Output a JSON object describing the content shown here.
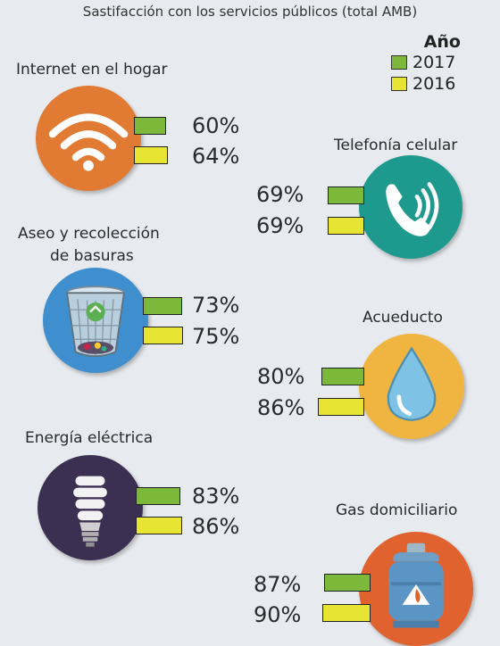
{
  "title": "Sastifacción con los servicios públicos (total AMB)",
  "legend": {
    "heading": "Año",
    "items": [
      {
        "label": "2017",
        "color": "#7cb83a"
      },
      {
        "label": "2016",
        "color": "#e8e433"
      }
    ]
  },
  "chart_data": {
    "type": "bar",
    "title": "Sastifacción con los servicios públicos (total AMB)",
    "categories": [
      "Internet en el hogar",
      "Telefonía celular",
      "Aseo y recolección de basuras",
      "Acueducto",
      "Energía eléctrica",
      "Gas domiciliario"
    ],
    "series": [
      {
        "name": "2017",
        "values": [
          60,
          69,
          73,
          80,
          83,
          87
        ]
      },
      {
        "name": "2016",
        "values": [
          64,
          69,
          75,
          86,
          86,
          90
        ]
      }
    ],
    "value_labels": {
      "2017": [
        "60%",
        "69%",
        "73%",
        "80%",
        "83%",
        "87%"
      ],
      "2016": [
        "64%",
        "69%",
        "75%",
        "86%",
        "86%",
        "90%"
      ]
    },
    "unit": "%",
    "colors": {
      "2017": "#7cb83a",
      "2016": "#e8e433"
    }
  },
  "services": [
    {
      "name": "Internet en el hogar",
      "icon": "wifi-icon",
      "circle_color": "#e17b34"
    },
    {
      "name": "Telefonía celular",
      "icon": "phone-icon",
      "circle_color": "#1d9a8d"
    },
    {
      "name": "Aseo y recolección de basuras",
      "name_line1": "Aseo y recolección",
      "name_line2": "de basuras",
      "icon": "trash-bin-icon",
      "circle_color": "#3f8fcf"
    },
    {
      "name": "Acueducto",
      "icon": "water-drop-icon",
      "circle_color": "#f0b540"
    },
    {
      "name": "Energía eléctrica",
      "icon": "light-bulb-icon",
      "circle_color": "#3b2f52"
    },
    {
      "name": "Gas domiciliario",
      "icon": "gas-cylinder-icon",
      "circle_color": "#e0622f"
    }
  ]
}
